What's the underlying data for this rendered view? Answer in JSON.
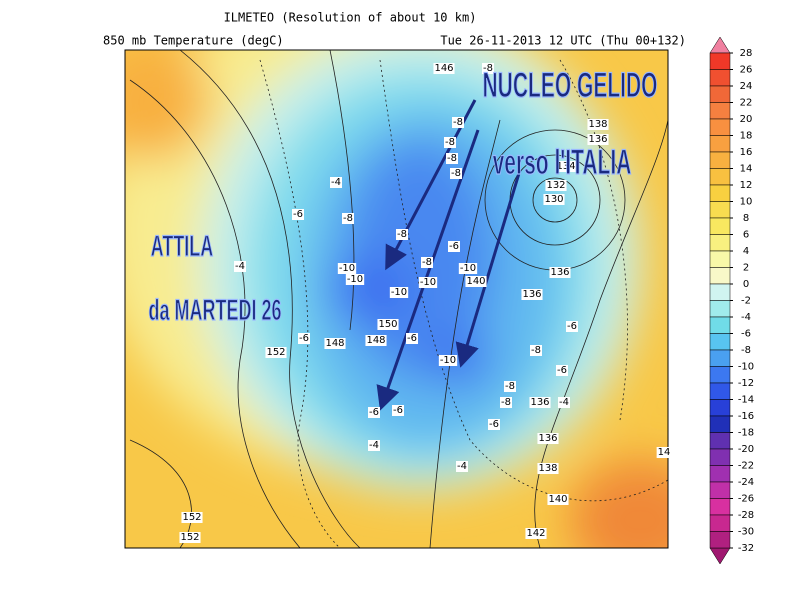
{
  "header": {
    "title": "ILMETEO  (Resolution of about 10 km)",
    "subtitle": "850 mb Temperature (degC)",
    "run": "Tue 26-11-2013 12 UTC (Thu 00+132)"
  },
  "map": {
    "annotations": [
      "NUCLEO GELIDO",
      "verso l'ITALIA",
      "ATTILA",
      "da MARTEDI 26"
    ],
    "labels": [
      146,
      -8,
      138,
      136,
      134,
      132,
      130,
      -8,
      -8,
      -8,
      -8,
      -4,
      -6,
      -8,
      -8,
      -6,
      -10,
      -10,
      -8,
      -10,
      -10,
      140,
      -10,
      136,
      136,
      -6,
      -8,
      -6,
      -8,
      -8,
      136,
      -4,
      -6,
      136,
      138,
      140,
      142,
      -10,
      -6,
      -6,
      -4,
      -4,
      150,
      148,
      148,
      152,
      152,
      152,
      14,
      -6,
      -4,
      -6
    ]
  },
  "colorbar": {
    "levels": [
      28,
      26,
      24,
      22,
      20,
      18,
      16,
      14,
      12,
      10,
      8,
      6,
      4,
      2,
      0,
      -2,
      -4,
      -6,
      -8,
      -10,
      -12,
      -14,
      -16,
      -18,
      -20,
      -22,
      -24,
      -26,
      -28,
      -30,
      -32
    ],
    "colors": [
      "#f03828",
      "#f05030",
      "#f06838",
      "#f58040",
      "#f89040",
      "#f8a040",
      "#f8b040",
      "#f8c040",
      "#f8d040",
      "#f8dc50",
      "#f8e860",
      "#f8f080",
      "#f8f8a8",
      "#f8f8c8",
      "#d0f4f0",
      "#a0ecec",
      "#70dce8",
      "#58c4f0",
      "#4aa0f0",
      "#3c78f0",
      "#3058e8",
      "#2840d8",
      "#2030b8",
      "#6030b0",
      "#8030b0",
      "#a030b0",
      "#c030a8",
      "#d830a0",
      "#c82890",
      "#b02080"
    ],
    "over_color": "#f080a0",
    "under_color": "#a01870"
  }
}
